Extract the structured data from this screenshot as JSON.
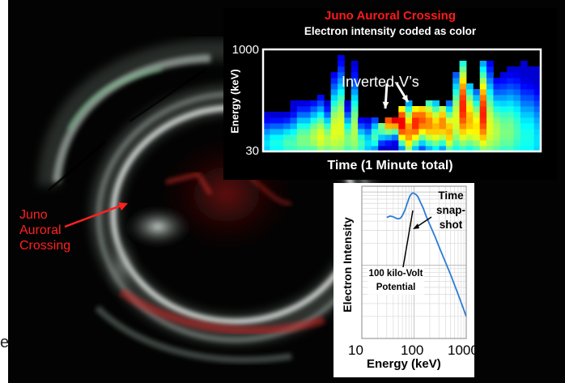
{
  "image_caption": {
    "crossing_label_lines": [
      "Juno",
      "Auroral",
      "Crossing"
    ],
    "edge_letter": "e"
  },
  "colors": {
    "title_red": "#ff1a1a",
    "label_red": "#ff2020",
    "curve_blue": "#2b7bd6"
  },
  "chart_data": [
    {
      "type": "heatmap",
      "title": "Juno Auroral Crossing",
      "subtitle": "Electron intensity coded as color",
      "xlabel": "Time (1 Minute total)",
      "ylabel": "Energy (keV)",
      "y_scale": "log",
      "ylim": [
        30,
        1000
      ],
      "y_ticks": [
        "1000",
        "30"
      ],
      "annotations": [
        "Inverted-V’s"
      ],
      "time_bins": 41,
      "energy_bins": 18,
      "column_top_energy_keV": [
        120,
        120,
        120,
        120,
        160,
        180,
        180,
        180,
        220,
        160,
        500,
        800,
        160,
        650,
        100,
        100,
        90,
        80,
        90,
        90,
        130,
        180,
        150,
        140,
        160,
        160,
        150,
        160,
        480,
        700,
        320,
        260,
        640,
        700,
        400,
        500,
        580,
        600,
        640,
        600,
        600
      ],
      "column_peak_intensity": [
        0.35,
        0.4,
        0.4,
        0.45,
        0.45,
        0.5,
        0.5,
        0.55,
        0.6,
        0.55,
        0.6,
        0.6,
        0.5,
        0.55,
        0.45,
        0.35,
        0.45,
        0.5,
        0.8,
        0.95,
        0.9,
        0.75,
        0.85,
        0.8,
        0.75,
        0.7,
        0.75,
        0.7,
        0.6,
        0.85,
        0.7,
        0.65,
        0.85,
        0.6,
        0.55,
        0.5,
        0.5,
        0.45,
        0.4,
        0.4,
        0.35
      ],
      "column_peak_energy_keV": [
        40,
        40,
        40,
        40,
        40,
        45,
        45,
        50,
        50,
        45,
        60,
        70,
        45,
        60,
        40,
        40,
        50,
        70,
        90,
        100,
        80,
        60,
        80,
        90,
        80,
        70,
        80,
        60,
        90,
        140,
        90,
        70,
        110,
        70,
        60,
        60,
        60,
        60,
        50,
        50,
        45
      ]
    },
    {
      "type": "line",
      "title": "",
      "xlabel": "Energy (keV)",
      "ylabel": "Electron Intensity",
      "x_scale": "log",
      "xlim": [
        10,
        1000
      ],
      "x_ticks": [
        "10",
        "100",
        "1000"
      ],
      "y_scale": "log",
      "series": [
        {
          "x": [
            30,
            35,
            40,
            45,
            50,
            55,
            60,
            65,
            70,
            75,
            80,
            85,
            90,
            95,
            100,
            110,
            120,
            130,
            150,
            170,
            200,
            250,
            300,
            400,
            500,
            700,
            1000
          ],
          "y": [
            0.45,
            0.47,
            0.46,
            0.44,
            0.43,
            0.44,
            0.48,
            0.54,
            0.62,
            0.72,
            0.82,
            0.9,
            0.95,
            0.97,
            0.96,
            0.92,
            0.85,
            0.75,
            0.6,
            0.47,
            0.36,
            0.25,
            0.18,
            0.11,
            0.075,
            0.04,
            0.02
          ]
        }
      ],
      "annotations": [
        "Time snap-shot",
        "100 kilo-Volt Potential"
      ]
    }
  ]
}
